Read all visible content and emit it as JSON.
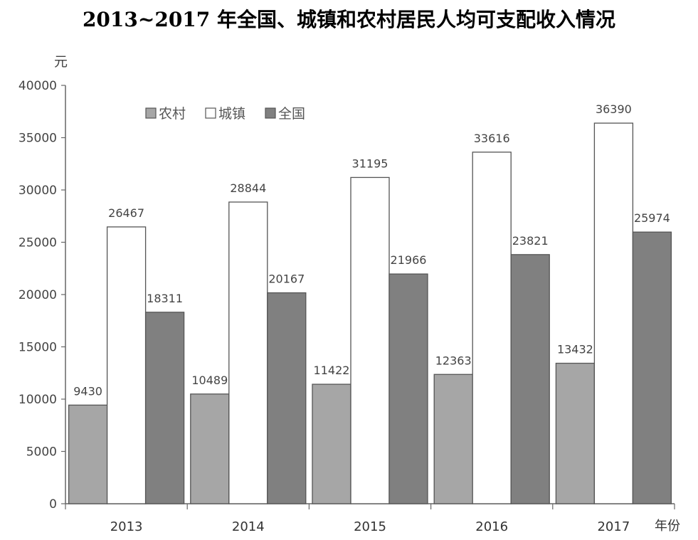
{
  "chart_data": {
    "type": "bar",
    "title": "2013~2017 年全国、城镇和农村居民人均可支配收入情况",
    "ylabel": "元",
    "xlabel": "年份",
    "ylim": [
      0,
      40000
    ],
    "yticks": [
      0,
      5000,
      10000,
      15000,
      20000,
      25000,
      30000,
      35000,
      40000
    ],
    "categories": [
      "2013",
      "2014",
      "2015",
      "2016",
      "2017"
    ],
    "series": [
      {
        "name": "农村",
        "color": "#a6a6a6",
        "values": [
          9430,
          10489,
          11422,
          12363,
          13432
        ]
      },
      {
        "name": "城镇",
        "color": "#ffffff",
        "values": [
          26467,
          28844,
          31195,
          33616,
          36390
        ]
      },
      {
        "name": "全国",
        "color": "#808080",
        "values": [
          18311,
          20167,
          21966,
          23821,
          25974
        ]
      }
    ],
    "legend_position": "top-left",
    "grid": false
  }
}
